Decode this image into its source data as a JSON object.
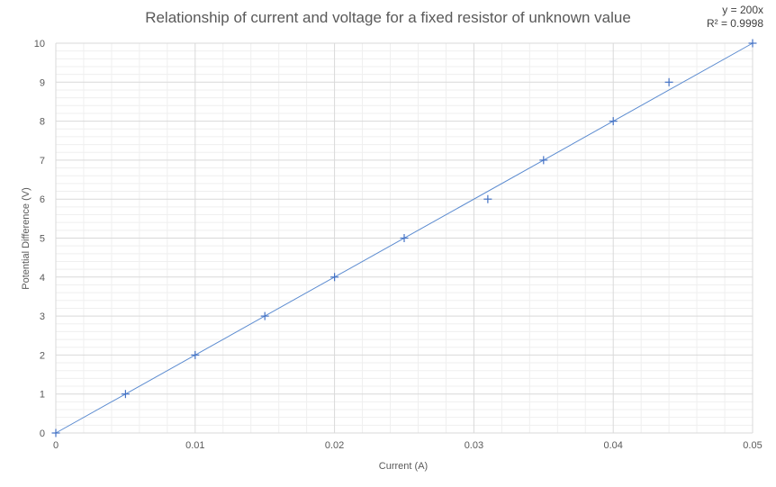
{
  "chart_data": {
    "type": "scatter",
    "title": "Relationship of current and voltage for a fixed resistor of unknown value",
    "xlabel": "Current (A)",
    "ylabel": "Potential Difference (V)",
    "xlim": [
      0,
      0.05
    ],
    "ylim": [
      0,
      10
    ],
    "x_ticks": [
      0,
      0.01,
      0.02,
      0.03,
      0.04,
      0.05
    ],
    "x_tick_labels": [
      "0",
      "0.01",
      "0.02",
      "0.03",
      "0.04",
      "0.05"
    ],
    "y_ticks": [
      0,
      1,
      2,
      3,
      4,
      5,
      6,
      7,
      8,
      9,
      10
    ],
    "y_tick_labels": [
      "0",
      "1",
      "2",
      "3",
      "4",
      "5",
      "6",
      "7",
      "8",
      "9",
      "10"
    ],
    "grid": true,
    "minor_grid": true,
    "marker": "plus",
    "series": [
      {
        "x": [
          0,
          0.005,
          0.01,
          0.015,
          0.02,
          0.025,
          0.031,
          0.035,
          0.04,
          0.044,
          0.05
        ],
        "y": [
          0,
          1,
          2,
          3,
          4,
          5,
          6,
          7,
          8,
          9,
          10
        ],
        "color": "#4472c4"
      }
    ],
    "trendline": {
      "type": "linear",
      "slope": 200,
      "intercept": 0,
      "color": "#5b8bd0",
      "equation": "y = 200x",
      "r_squared": "R² = 0.9998"
    },
    "colors": {
      "major_grid": "#d9d9d9",
      "minor_grid": "#efefef",
      "marker": "#4472c4"
    }
  }
}
